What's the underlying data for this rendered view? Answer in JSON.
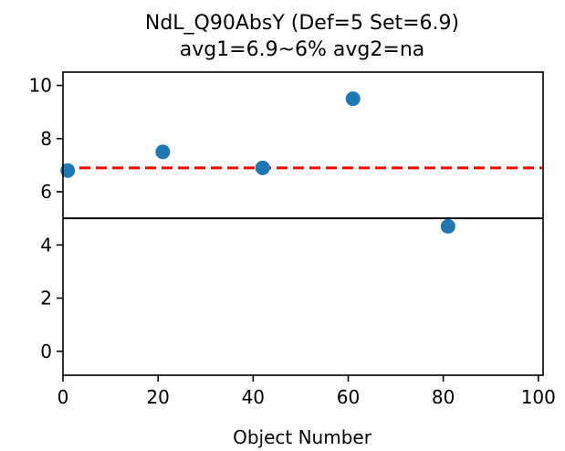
{
  "chart_data": {
    "type": "scatter",
    "title": "NdL_Q90AbsY (Def=5 Set=6.9)",
    "subtitle": "avg1=6.9~6% avg2=na",
    "xlabel": "Object Number",
    "ylabel": "",
    "xlim": [
      0,
      101
    ],
    "ylim": [
      -0.9,
      10.5
    ],
    "x_ticks": [
      0,
      20,
      40,
      60,
      80,
      100
    ],
    "y_ticks": [
      0,
      2,
      4,
      6,
      8,
      10
    ],
    "grid": false,
    "series": [
      {
        "points": [
          {
            "x": 1,
            "y": 6.8
          },
          {
            "x": 21,
            "y": 7.5
          },
          {
            "x": 42,
            "y": 6.9
          },
          {
            "x": 61,
            "y": 9.5
          },
          {
            "x": 81,
            "y": 4.7
          }
        ],
        "color": "#1f77b4"
      }
    ],
    "reference_lines": [
      {
        "y": 6.9,
        "color": "#ff0000",
        "style": "dashed"
      },
      {
        "y": 5,
        "color": "#000000",
        "style": "solid"
      }
    ]
  }
}
